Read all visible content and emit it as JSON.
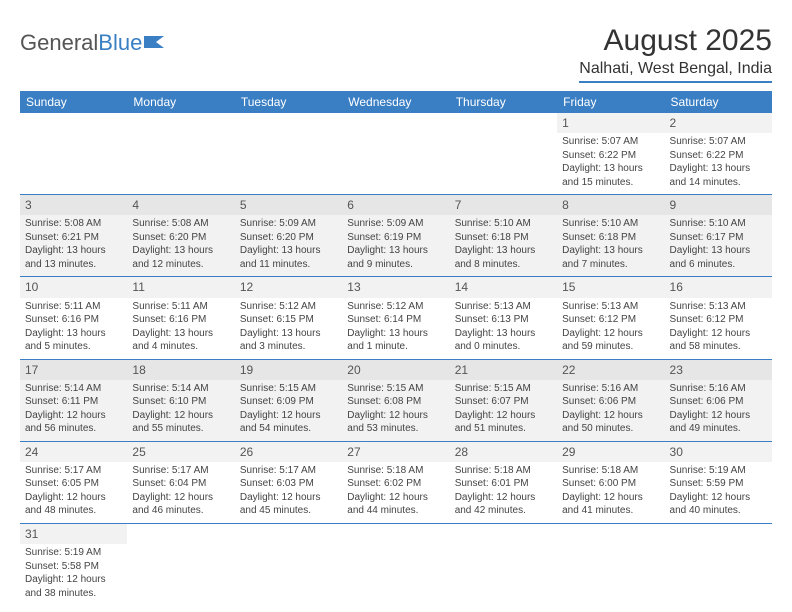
{
  "logo": {
    "text1": "General",
    "text2": "Blue"
  },
  "title": "August 2025",
  "location": "Nalhati, West Bengal, India",
  "colors": {
    "accent": "#3a7fc4",
    "header_bg": "#3a7fc4",
    "row_shade": "#f2f2f2",
    "text": "#444"
  },
  "weekdays": [
    "Sunday",
    "Monday",
    "Tuesday",
    "Wednesday",
    "Thursday",
    "Friday",
    "Saturday"
  ],
  "weeks": [
    [
      null,
      null,
      null,
      null,
      null,
      {
        "n": "1",
        "sr": "Sunrise: 5:07 AM",
        "ss": "Sunset: 6:22 PM",
        "d1": "Daylight: 13 hours",
        "d2": "and 15 minutes."
      },
      {
        "n": "2",
        "sr": "Sunrise: 5:07 AM",
        "ss": "Sunset: 6:22 PM",
        "d1": "Daylight: 13 hours",
        "d2": "and 14 minutes."
      }
    ],
    [
      {
        "n": "3",
        "sr": "Sunrise: 5:08 AM",
        "ss": "Sunset: 6:21 PM",
        "d1": "Daylight: 13 hours",
        "d2": "and 13 minutes."
      },
      {
        "n": "4",
        "sr": "Sunrise: 5:08 AM",
        "ss": "Sunset: 6:20 PM",
        "d1": "Daylight: 13 hours",
        "d2": "and 12 minutes."
      },
      {
        "n": "5",
        "sr": "Sunrise: 5:09 AM",
        "ss": "Sunset: 6:20 PM",
        "d1": "Daylight: 13 hours",
        "d2": "and 11 minutes."
      },
      {
        "n": "6",
        "sr": "Sunrise: 5:09 AM",
        "ss": "Sunset: 6:19 PM",
        "d1": "Daylight: 13 hours",
        "d2": "and 9 minutes."
      },
      {
        "n": "7",
        "sr": "Sunrise: 5:10 AM",
        "ss": "Sunset: 6:18 PM",
        "d1": "Daylight: 13 hours",
        "d2": "and 8 minutes."
      },
      {
        "n": "8",
        "sr": "Sunrise: 5:10 AM",
        "ss": "Sunset: 6:18 PM",
        "d1": "Daylight: 13 hours",
        "d2": "and 7 minutes."
      },
      {
        "n": "9",
        "sr": "Sunrise: 5:10 AM",
        "ss": "Sunset: 6:17 PM",
        "d1": "Daylight: 13 hours",
        "d2": "and 6 minutes."
      }
    ],
    [
      {
        "n": "10",
        "sr": "Sunrise: 5:11 AM",
        "ss": "Sunset: 6:16 PM",
        "d1": "Daylight: 13 hours",
        "d2": "and 5 minutes."
      },
      {
        "n": "11",
        "sr": "Sunrise: 5:11 AM",
        "ss": "Sunset: 6:16 PM",
        "d1": "Daylight: 13 hours",
        "d2": "and 4 minutes."
      },
      {
        "n": "12",
        "sr": "Sunrise: 5:12 AM",
        "ss": "Sunset: 6:15 PM",
        "d1": "Daylight: 13 hours",
        "d2": "and 3 minutes."
      },
      {
        "n": "13",
        "sr": "Sunrise: 5:12 AM",
        "ss": "Sunset: 6:14 PM",
        "d1": "Daylight: 13 hours",
        "d2": "and 1 minute."
      },
      {
        "n": "14",
        "sr": "Sunrise: 5:13 AM",
        "ss": "Sunset: 6:13 PM",
        "d1": "Daylight: 13 hours",
        "d2": "and 0 minutes."
      },
      {
        "n": "15",
        "sr": "Sunrise: 5:13 AM",
        "ss": "Sunset: 6:12 PM",
        "d1": "Daylight: 12 hours",
        "d2": "and 59 minutes."
      },
      {
        "n": "16",
        "sr": "Sunrise: 5:13 AM",
        "ss": "Sunset: 6:12 PM",
        "d1": "Daylight: 12 hours",
        "d2": "and 58 minutes."
      }
    ],
    [
      {
        "n": "17",
        "sr": "Sunrise: 5:14 AM",
        "ss": "Sunset: 6:11 PM",
        "d1": "Daylight: 12 hours",
        "d2": "and 56 minutes."
      },
      {
        "n": "18",
        "sr": "Sunrise: 5:14 AM",
        "ss": "Sunset: 6:10 PM",
        "d1": "Daylight: 12 hours",
        "d2": "and 55 minutes."
      },
      {
        "n": "19",
        "sr": "Sunrise: 5:15 AM",
        "ss": "Sunset: 6:09 PM",
        "d1": "Daylight: 12 hours",
        "d2": "and 54 minutes."
      },
      {
        "n": "20",
        "sr": "Sunrise: 5:15 AM",
        "ss": "Sunset: 6:08 PM",
        "d1": "Daylight: 12 hours",
        "d2": "and 53 minutes."
      },
      {
        "n": "21",
        "sr": "Sunrise: 5:15 AM",
        "ss": "Sunset: 6:07 PM",
        "d1": "Daylight: 12 hours",
        "d2": "and 51 minutes."
      },
      {
        "n": "22",
        "sr": "Sunrise: 5:16 AM",
        "ss": "Sunset: 6:06 PM",
        "d1": "Daylight: 12 hours",
        "d2": "and 50 minutes."
      },
      {
        "n": "23",
        "sr": "Sunrise: 5:16 AM",
        "ss": "Sunset: 6:06 PM",
        "d1": "Daylight: 12 hours",
        "d2": "and 49 minutes."
      }
    ],
    [
      {
        "n": "24",
        "sr": "Sunrise: 5:17 AM",
        "ss": "Sunset: 6:05 PM",
        "d1": "Daylight: 12 hours",
        "d2": "and 48 minutes."
      },
      {
        "n": "25",
        "sr": "Sunrise: 5:17 AM",
        "ss": "Sunset: 6:04 PM",
        "d1": "Daylight: 12 hours",
        "d2": "and 46 minutes."
      },
      {
        "n": "26",
        "sr": "Sunrise: 5:17 AM",
        "ss": "Sunset: 6:03 PM",
        "d1": "Daylight: 12 hours",
        "d2": "and 45 minutes."
      },
      {
        "n": "27",
        "sr": "Sunrise: 5:18 AM",
        "ss": "Sunset: 6:02 PM",
        "d1": "Daylight: 12 hours",
        "d2": "and 44 minutes."
      },
      {
        "n": "28",
        "sr": "Sunrise: 5:18 AM",
        "ss": "Sunset: 6:01 PM",
        "d1": "Daylight: 12 hours",
        "d2": "and 42 minutes."
      },
      {
        "n": "29",
        "sr": "Sunrise: 5:18 AM",
        "ss": "Sunset: 6:00 PM",
        "d1": "Daylight: 12 hours",
        "d2": "and 41 minutes."
      },
      {
        "n": "30",
        "sr": "Sunrise: 5:19 AM",
        "ss": "Sunset: 5:59 PM",
        "d1": "Daylight: 12 hours",
        "d2": "and 40 minutes."
      }
    ],
    [
      {
        "n": "31",
        "sr": "Sunrise: 5:19 AM",
        "ss": "Sunset: 5:58 PM",
        "d1": "Daylight: 12 hours",
        "d2": "and 38 minutes."
      },
      null,
      null,
      null,
      null,
      null,
      null
    ]
  ]
}
